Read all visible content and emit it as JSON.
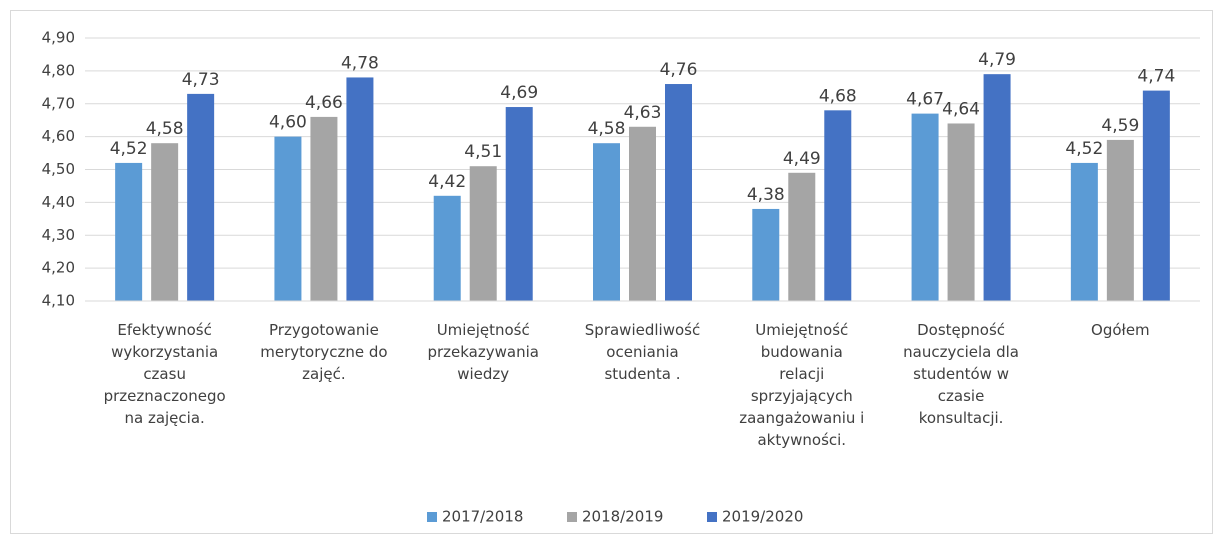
{
  "chart_data": {
    "type": "bar",
    "categories": [
      "Efektywność\nwykorzystania\nczasu\nprzeznaczonego\nna zajęcia.",
      "Przygotowanie\nmerytoryczne  do\nzajęć.",
      "Umiejętność\nprzekazywania\nwiedzy",
      "Sprawiedliwość\noceniania\nstudenta .",
      "Umiejętność\nbudowania\nrelacji\nsprzyjających\nzaangażowaniu i\naktywności.",
      "Dostępność\nnauczyciela dla\nstudentów w\nczasie\nkonsultacji.",
      "Ogółem"
    ],
    "series": [
      {
        "name": "2017/2018",
        "color": "#5b9bd5",
        "values": [
          4.52,
          4.6,
          4.42,
          4.58,
          4.38,
          4.67,
          4.52
        ],
        "value_labels": [
          "4,52",
          "4,60",
          "4,42",
          "4,58",
          "4,38",
          "4,67",
          "4,52"
        ]
      },
      {
        "name": "2018/2019",
        "color": "#a5a5a5",
        "values": [
          4.58,
          4.66,
          4.51,
          4.63,
          4.49,
          4.64,
          4.59
        ],
        "value_labels": [
          "4,58",
          "4,66",
          "4,51",
          "4,63",
          "4,49",
          "4,64",
          "4,59"
        ]
      },
      {
        "name": "2019/2020",
        "color": "#4472c4",
        "values": [
          4.73,
          4.78,
          4.69,
          4.76,
          4.68,
          4.79,
          4.74
        ],
        "value_labels": [
          "4,73",
          "4,78",
          "4,69",
          "4,76",
          "4,68",
          "4,79",
          "4,74"
        ]
      }
    ],
    "ylim": [
      4.1,
      4.9
    ],
    "yticks": [
      {
        "value": 4.1,
        "label": "4,10"
      },
      {
        "value": 4.2,
        "label": "4,20"
      },
      {
        "value": 4.3,
        "label": "4,30"
      },
      {
        "value": 4.4,
        "label": "4,40"
      },
      {
        "value": 4.5,
        "label": "4,50"
      },
      {
        "value": 4.6,
        "label": "4,60"
      },
      {
        "value": 4.7,
        "label": "4,70"
      },
      {
        "value": 4.8,
        "label": "4,80"
      },
      {
        "value": 4.9,
        "label": "4,90"
      }
    ],
    "grid": true,
    "legend": "bottom"
  }
}
